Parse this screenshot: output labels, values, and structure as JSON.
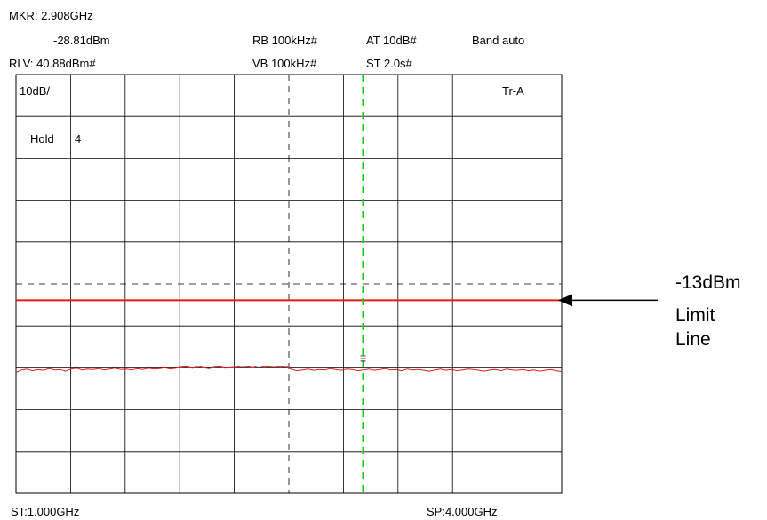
{
  "header": {
    "marker_freq": "MKR: 2.908GHz",
    "marker_level": "-28.81dBm",
    "ref_level": "RLV: 40.88dBm#",
    "rbw": "RB 100kHz#",
    "vbw": "VB 100kHz#",
    "atten": "AT 10dB#",
    "sweep_time": "ST 2.0s#",
    "band": "Band auto"
  },
  "screen": {
    "scale": "10dB/",
    "trace": "Tr-A",
    "hold_label": "Hold",
    "hold_value": "4"
  },
  "footer": {
    "start": "ST:1.000GHz",
    "stop": "SP:4.000GHz"
  },
  "annotation": {
    "limit_line_value": "-13dBm",
    "limit_line_word1": "Limit",
    "limit_line_word2": "Line"
  },
  "colors": {
    "trace": "#e11b1b",
    "limit_line": "#e11b1b",
    "marker_line": "#11cc11",
    "grid": "#000000"
  },
  "chart_data": {
    "type": "line",
    "x_range_ghz": [
      1.0,
      4.0
    ],
    "ref_level_dbm": 40.88,
    "scale_db_per_div": 10,
    "divisions_y": 10,
    "divisions_x": 10,
    "limit_line_dbm": -13,
    "marker": {
      "freq_ghz": 2.908,
      "level_dbm": -28.81
    },
    "noise_floor_dbm": -29.5,
    "trace_level_dbm": [
      -30.2,
      -29.6,
      -29.4,
      -29.8,
      -29.5,
      -29.7,
      -29.3,
      -29.6,
      -29.5,
      -29.9,
      -29.4,
      -29.2,
      -29.6,
      -29.4,
      -29.5,
      -29.3,
      -29.6,
      -29.4,
      -29.2,
      -29.5,
      -29.4,
      -29.6,
      -29.3,
      -29.5,
      -29.2,
      -29.4,
      -29.3,
      -29.1,
      -29.4,
      -29.2,
      -29.0,
      -28.9,
      -29.2,
      -28.8,
      -29.1,
      -29.3,
      -29.0,
      -28.9,
      -29.2,
      -29.1,
      -29.0,
      -28.8,
      -28.9,
      -29.1,
      -28.7,
      -29.0,
      -28.9,
      -28.8,
      -29.0,
      -28.81,
      -29.5,
      -29.8,
      -29.6,
      -29.4,
      -29.7,
      -29.5,
      -29.6,
      -29.3,
      -29.5,
      -29.7,
      -29.4,
      -29.5,
      -29.8,
      -29.6,
      -29.4,
      -29.7,
      -29.5,
      -29.3,
      -29.6,
      -29.5,
      -29.8,
      -29.4,
      -29.6,
      -29.5,
      -29.7,
      -29.9,
      -29.6,
      -29.4,
      -29.7,
      -29.5,
      -29.8,
      -29.6,
      -29.4,
      -29.5,
      -29.7,
      -29.9,
      -29.6,
      -29.5,
      -29.8,
      -29.4,
      -29.6,
      -29.7,
      -29.5,
      -29.8,
      -29.6,
      -29.9,
      -29.7,
      -29.5,
      -29.8,
      -30.0
    ]
  }
}
